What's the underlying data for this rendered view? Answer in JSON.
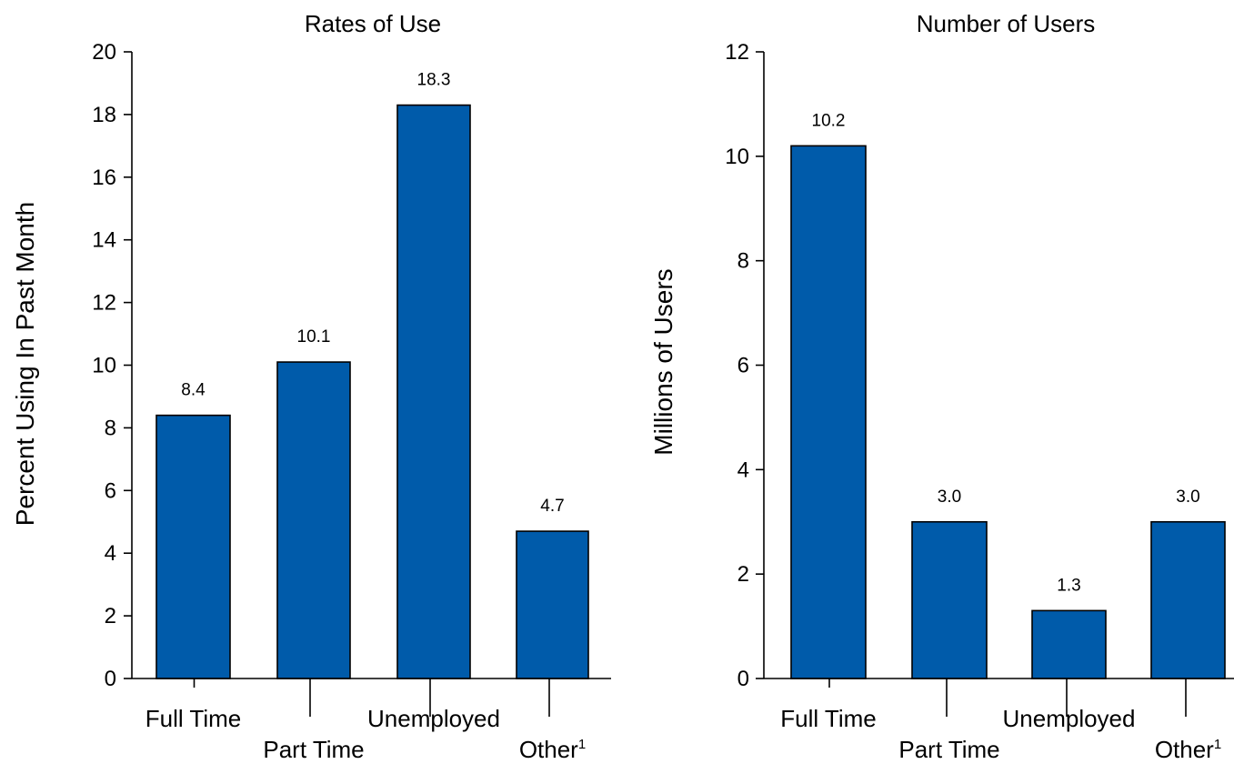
{
  "bar_color": "#005BAA",
  "chart_data": [
    {
      "type": "bar",
      "title": "Rates of Use",
      "ylabel": "Percent Using In Past Month",
      "xlabel": "",
      "ylim": [
        0,
        20
      ],
      "yticks": [
        0,
        2,
        4,
        6,
        8,
        10,
        12,
        14,
        16,
        18,
        20
      ],
      "categories": [
        "Full Time",
        "Part Time",
        "Unemployed",
        "Other"
      ],
      "category_superscripts": [
        "",
        "",
        "",
        "1"
      ],
      "values": [
        8.4,
        10.1,
        18.3,
        4.7
      ],
      "data_labels": [
        "8.4",
        "10.1",
        "18.3",
        "4.7"
      ],
      "grid": false
    },
    {
      "type": "bar",
      "title": "Number of Users",
      "ylabel": "Millions of Users",
      "xlabel": "",
      "ylim": [
        0,
        12
      ],
      "yticks": [
        0,
        2,
        4,
        6,
        8,
        10,
        12
      ],
      "categories": [
        "Full Time",
        "Part Time",
        "Unemployed",
        "Other"
      ],
      "category_superscripts": [
        "",
        "",
        "",
        "1"
      ],
      "values": [
        10.2,
        3.0,
        1.3,
        3.0
      ],
      "data_labels": [
        "10.2",
        "3.0",
        "1.3",
        "3.0"
      ],
      "grid": false
    }
  ]
}
